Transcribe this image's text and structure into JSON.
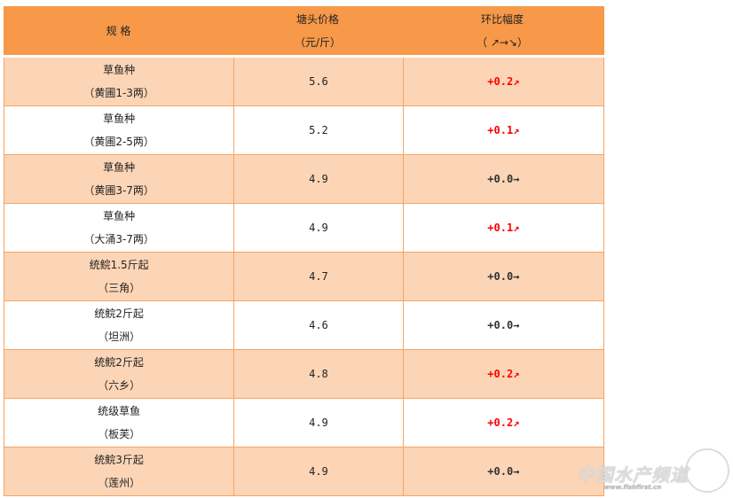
{
  "header": {
    "spec": "规 格",
    "price_line1": "塘头价格",
    "price_line2": "（元/斤）",
    "change_line1": "环比幅度",
    "change_line2": "（ ↗→↘）"
  },
  "colors": {
    "header_bg": "#f79949",
    "row_alt": "#fcd5b6",
    "up": "#ff0000",
    "flat": "#333333"
  },
  "rows": [
    {
      "name": "草鱼种",
      "origin": "（黄圃1-3两）",
      "price": "5.6",
      "change": "+0.2↗",
      "trend": "up"
    },
    {
      "name": "草鱼种",
      "origin": "（黄圃2-5两）",
      "price": "5.2",
      "change": "+0.1↗",
      "trend": "up"
    },
    {
      "name": "草鱼种",
      "origin": "（黄圃3-7两）",
      "price": "4.9",
      "change": "+0.0→",
      "trend": "flat"
    },
    {
      "name": "草鱼种",
      "origin": "（大涌3-7两）",
      "price": "4.9",
      "change": "+0.1↗",
      "trend": "up"
    },
    {
      "name": "统鲩1.5斤起",
      "origin": "（三角）",
      "price": "4.7",
      "change": "+0.0→",
      "trend": "flat"
    },
    {
      "name": "统鲩2斤起",
      "origin": "（坦洲）",
      "price": "4.6",
      "change": "+0.0→",
      "trend": "flat"
    },
    {
      "name": "统鲩2斤起",
      "origin": "（六乡）",
      "price": "4.8",
      "change": "+0.2↗",
      "trend": "up"
    },
    {
      "name": "统级草鱼",
      "origin": "（板芙）",
      "price": "4.9",
      "change": "+0.2↗",
      "trend": "up"
    },
    {
      "name": "统鲩3斤起",
      "origin": "（莲州）",
      "price": "4.9",
      "change": "+0.0→",
      "trend": "flat"
    }
  ],
  "watermark": {
    "text": "中国水产频道",
    "url": "www.fishfirst.cn"
  }
}
